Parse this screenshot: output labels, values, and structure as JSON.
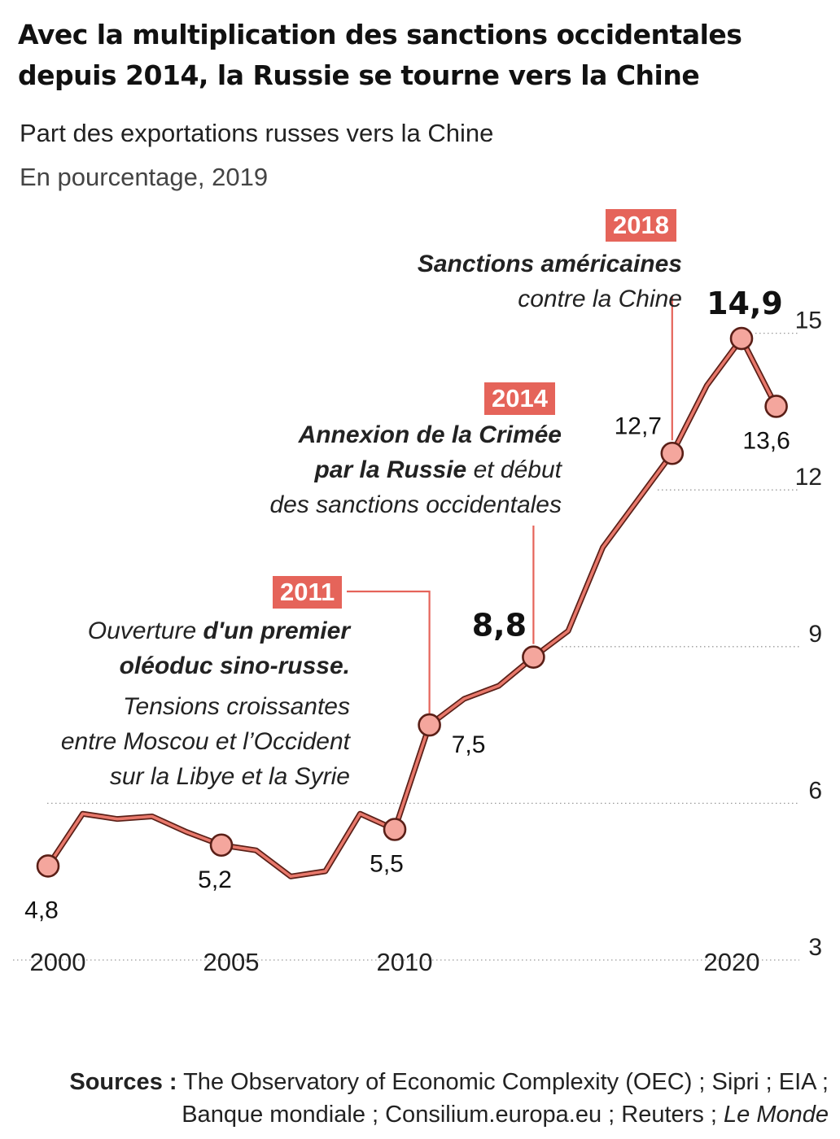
{
  "header": {
    "title": "Avec la multiplication des sanctions occidentales depuis 2014, la Russie se tourne vers la Chine",
    "subtitle": "Part des exportations russes vers la Chine",
    "unit": "En pourcentage, 2019"
  },
  "annotations": {
    "y2018": {
      "year": "2018",
      "bold": "Sanctions américaines",
      "rest": "contre la Chine"
    },
    "y2014": {
      "year": "2014",
      "bold1": "Annexion de la Crimée",
      "bold2": "par la Russie",
      "rest2": " et début",
      "rest3": "des sanctions occidentales"
    },
    "y2011": {
      "year": "2011",
      "normal1": "Ouverture ",
      "bold1": "d'un premier",
      "bold2": "oléoduc sino-russe.",
      "line3": "Tensions croissantes",
      "line4": "entre Moscou et l’Occident",
      "line5": "sur la Libye et la Syrie"
    }
  },
  "sources": {
    "label": "Sources :",
    "line1": " The Observatory of Economic Complexity (OEC) ; Sipri ; EIA ;",
    "line2": "Banque mondiale ; Consilium.europa.eu ; Reuters ; ",
    "line2_italic": "Le Monde"
  },
  "colors": {
    "line": "#e8786b",
    "line_dark": "#5a1f17",
    "marker": "#f4a69d",
    "accent": "#e5645a"
  },
  "chart_data": {
    "type": "line",
    "title": "Avec la multiplication des sanctions occidentales depuis 2014, la Russie se tourne vers la Chine",
    "xlabel": "",
    "ylabel": "",
    "xlim": [
      2000,
      2021
    ],
    "ylim": [
      3,
      15
    ],
    "x_ticks": [
      2000,
      2005,
      2010,
      2020
    ],
    "x_tick_labels": [
      "2000",
      "2005",
      "2010",
      "2020"
    ],
    "y_ticks": [
      3,
      6,
      9,
      12,
      15
    ],
    "y_tick_labels": [
      "3",
      "6",
      "9",
      "12",
      "15"
    ],
    "grid": "dotted horizontal",
    "x": [
      2000,
      2001,
      2002,
      2003,
      2004,
      2005,
      2006,
      2007,
      2008,
      2009,
      2010,
      2011,
      2012,
      2013,
      2014,
      2015,
      2016,
      2017,
      2018,
      2019,
      2020,
      2021
    ],
    "series": [
      {
        "values": [
          4.8,
          5.8,
          5.7,
          5.75,
          5.45,
          5.2,
          5.1,
          4.6,
          4.7,
          5.8,
          5.5,
          7.5,
          8.0,
          8.25,
          8.8,
          9.3,
          10.9,
          11.8,
          12.7,
          14.0,
          14.9,
          13.6
        ]
      }
    ],
    "highlighted_points": [
      {
        "x": 2000,
        "y": 4.8,
        "label": "4,8"
      },
      {
        "x": 2005,
        "y": 5.2,
        "label": "5,2"
      },
      {
        "x": 2010,
        "y": 5.5,
        "label": "5,5"
      },
      {
        "x": 2011,
        "y": 7.5,
        "label": "7,5"
      },
      {
        "x": 2014,
        "y": 8.8,
        "label": "8,8"
      },
      {
        "x": 2018,
        "y": 12.7,
        "label": "12,7"
      },
      {
        "x": 2020,
        "y": 14.9,
        "label": "14,9"
      },
      {
        "x": 2021,
        "y": 13.6,
        "label": "13,6"
      }
    ]
  }
}
